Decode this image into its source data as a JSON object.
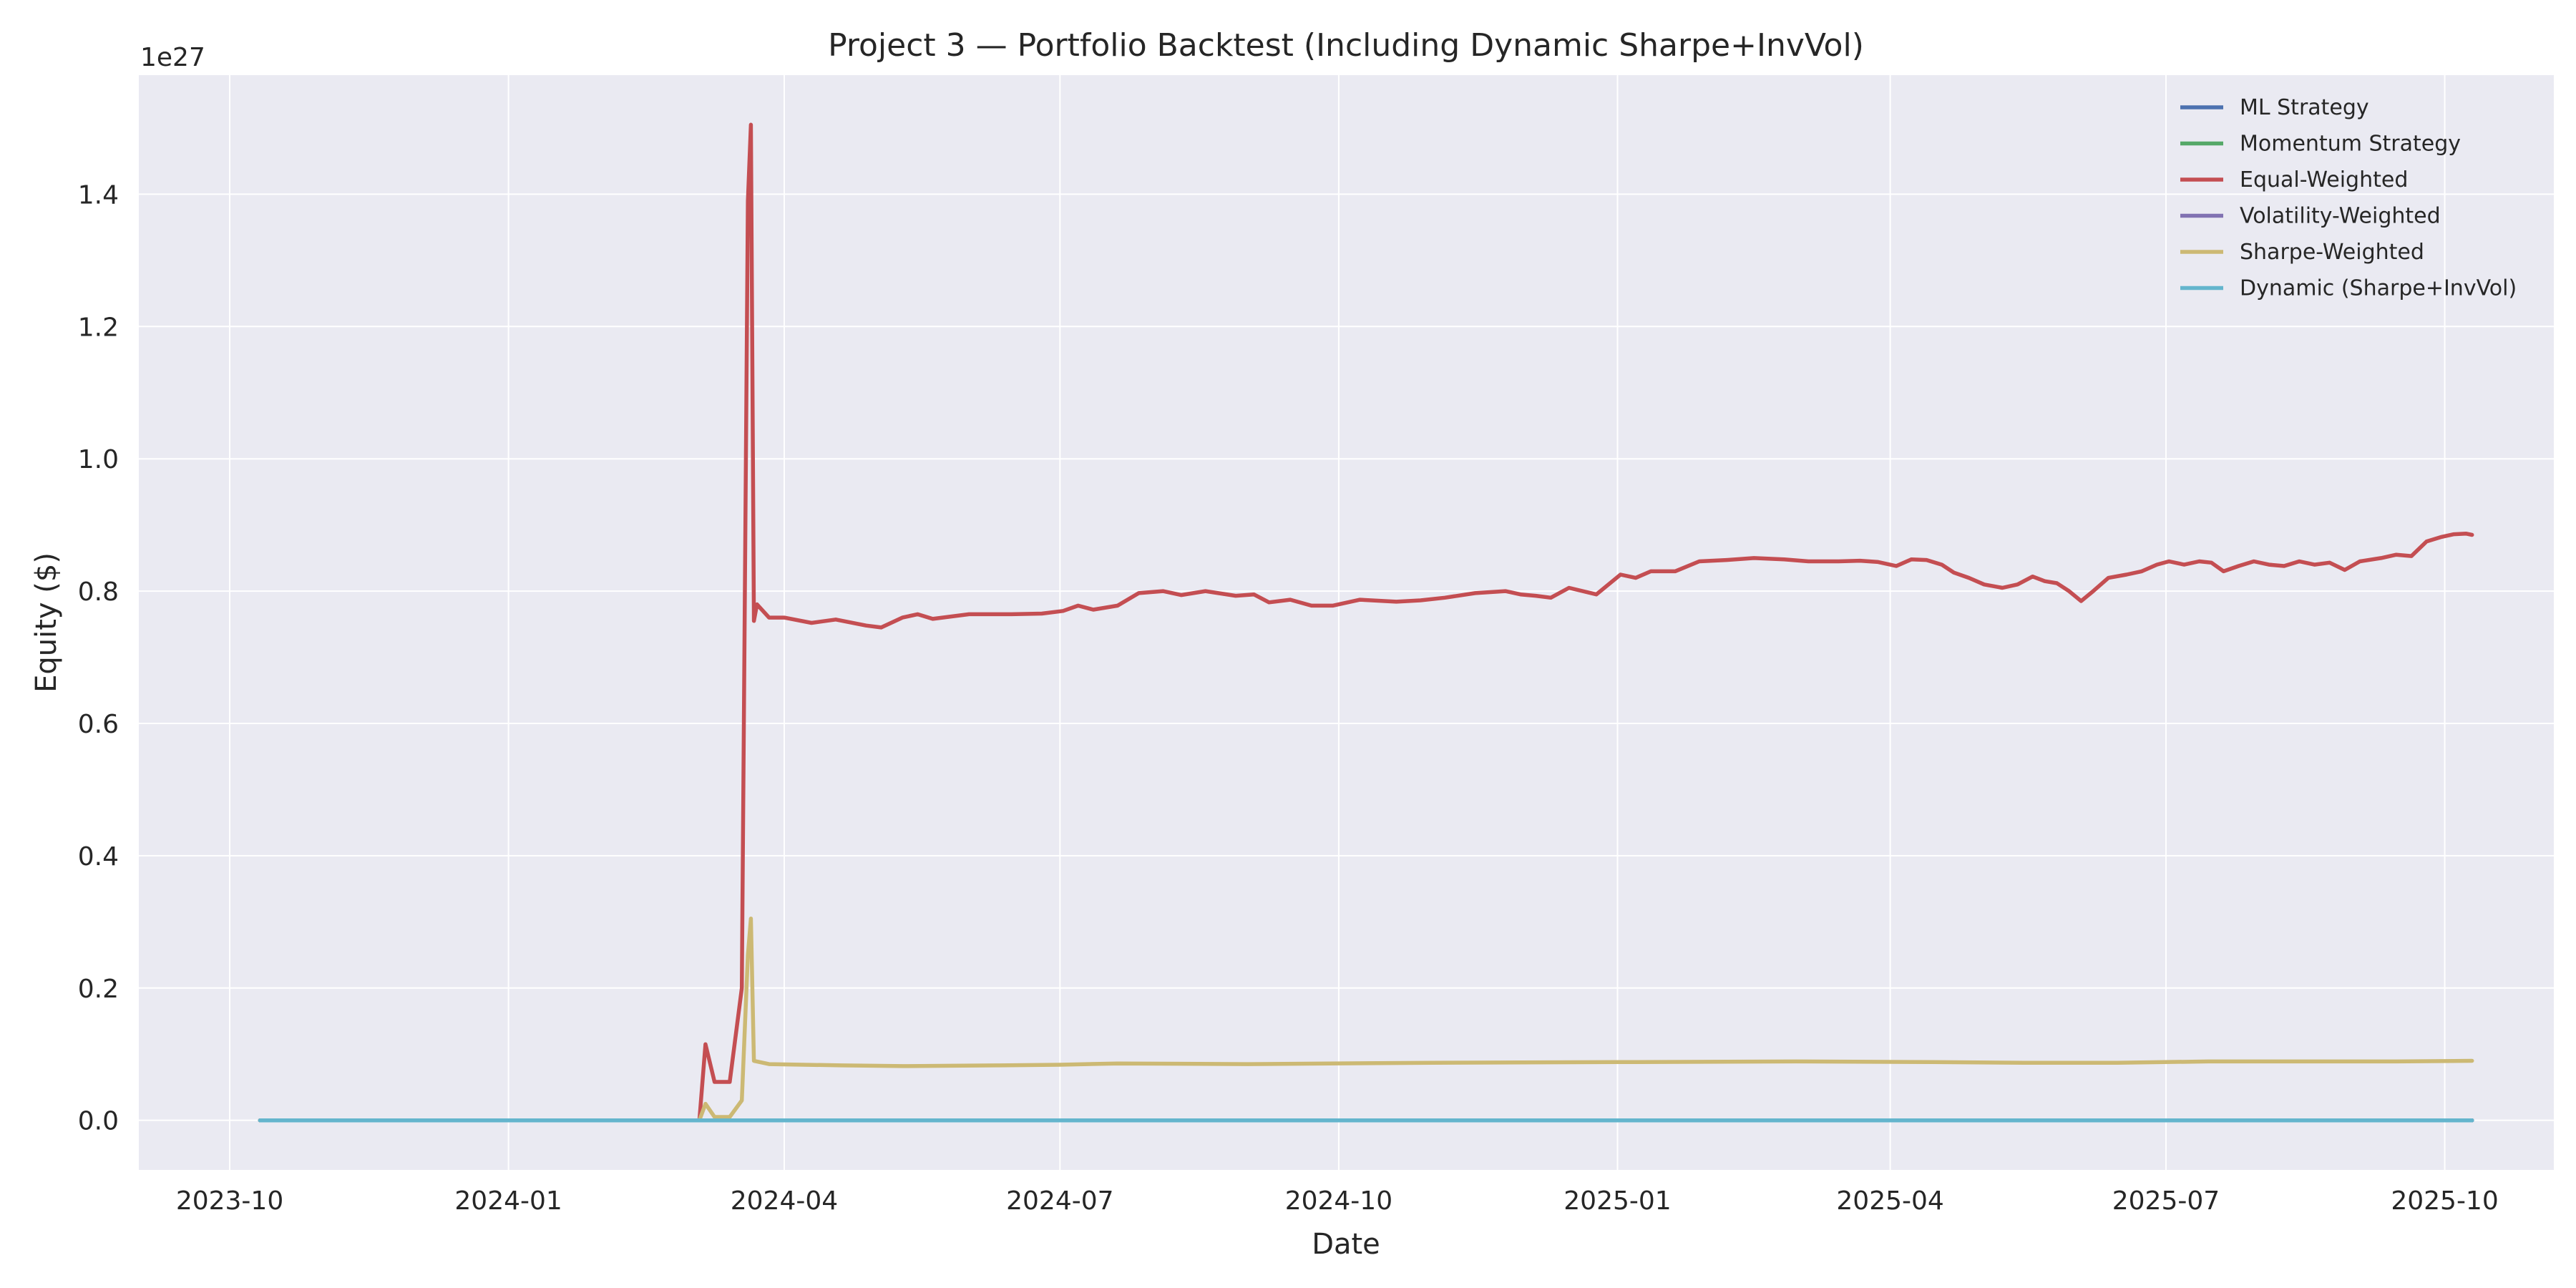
{
  "chart_data": {
    "type": "line",
    "title": "Project 3 — Portfolio Backtest (Including Dynamic Sharpe+InvVol)",
    "xlabel": "Date",
    "ylabel": "Equity ($)",
    "y_offset_label": "1e27",
    "y_unit_multiplier": 1e+27,
    "xlim": [
      "2023-09-01",
      "2025-11-06"
    ],
    "ylim": [
      -0.075,
      1.58
    ],
    "x_ticks": [
      {
        "date": "2023-10-01",
        "label": "2023-10"
      },
      {
        "date": "2024-01-01",
        "label": "2024-01"
      },
      {
        "date": "2024-04-01",
        "label": "2024-04"
      },
      {
        "date": "2024-07-01",
        "label": "2024-07"
      },
      {
        "date": "2024-10-01",
        "label": "2024-10"
      },
      {
        "date": "2025-01-01",
        "label": "2025-01"
      },
      {
        "date": "2025-04-01",
        "label": "2025-04"
      },
      {
        "date": "2025-07-01",
        "label": "2025-07"
      },
      {
        "date": "2025-10-01",
        "label": "2025-10"
      }
    ],
    "y_ticks": [
      {
        "value": 0.0,
        "label": "0.0"
      },
      {
        "value": 0.2,
        "label": "0.2"
      },
      {
        "value": 0.4,
        "label": "0.4"
      },
      {
        "value": 0.6,
        "label": "0.6"
      },
      {
        "value": 0.8,
        "label": "0.8"
      },
      {
        "value": 1.0,
        "label": "1.0"
      },
      {
        "value": 1.2,
        "label": "1.2"
      },
      {
        "value": 1.4,
        "label": "1.4"
      }
    ],
    "grid": true,
    "legend_position": "top-right",
    "series": [
      {
        "name": "ML Strategy",
        "color": "#4c72b0",
        "points": [
          [
            "2023-10-11",
            0.0
          ],
          [
            "2025-10-10",
            0.0
          ]
        ]
      },
      {
        "name": "Momentum Strategy",
        "color": "#55a868",
        "points": [
          [
            "2023-10-11",
            0.0
          ],
          [
            "2025-10-10",
            0.0
          ]
        ]
      },
      {
        "name": "Equal-Weighted",
        "color": "#c44e52",
        "points": [
          [
            "2023-10-11",
            0.0
          ],
          [
            "2024-03-04",
            0.0
          ],
          [
            "2024-03-06",
            0.115
          ],
          [
            "2024-03-09",
            0.058
          ],
          [
            "2024-03-14",
            0.058
          ],
          [
            "2024-03-18",
            0.2
          ],
          [
            "2024-03-20",
            1.39
          ],
          [
            "2024-03-21",
            1.505
          ],
          [
            "2024-03-22",
            0.755
          ],
          [
            "2024-03-23",
            0.78
          ],
          [
            "2024-03-27",
            0.76
          ],
          [
            "2024-04-01",
            0.76
          ],
          [
            "2024-04-10",
            0.752
          ],
          [
            "2024-04-18",
            0.757
          ],
          [
            "2024-04-28",
            0.748
          ],
          [
            "2024-05-03",
            0.745
          ],
          [
            "2024-05-10",
            0.76
          ],
          [
            "2024-05-15",
            0.765
          ],
          [
            "2024-05-20",
            0.758
          ],
          [
            "2024-06-01",
            0.765
          ],
          [
            "2024-06-15",
            0.765
          ],
          [
            "2024-06-25",
            0.766
          ],
          [
            "2024-07-02",
            0.77
          ],
          [
            "2024-07-07",
            0.778
          ],
          [
            "2024-07-12",
            0.772
          ],
          [
            "2024-07-20",
            0.778
          ],
          [
            "2024-07-27",
            0.797
          ],
          [
            "2024-08-04",
            0.8
          ],
          [
            "2024-08-10",
            0.794
          ],
          [
            "2024-08-18",
            0.8
          ],
          [
            "2024-08-28",
            0.793
          ],
          [
            "2024-09-03",
            0.795
          ],
          [
            "2024-09-08",
            0.783
          ],
          [
            "2024-09-15",
            0.787
          ],
          [
            "2024-09-22",
            0.778
          ],
          [
            "2024-09-29",
            0.778
          ],
          [
            "2024-10-08",
            0.787
          ],
          [
            "2024-10-20",
            0.784
          ],
          [
            "2024-10-28",
            0.786
          ],
          [
            "2024-11-05",
            0.79
          ],
          [
            "2024-11-15",
            0.797
          ],
          [
            "2024-11-25",
            0.8
          ],
          [
            "2024-11-30",
            0.795
          ],
          [
            "2024-12-05",
            0.793
          ],
          [
            "2024-12-10",
            0.79
          ],
          [
            "2024-12-16",
            0.805
          ],
          [
            "2024-12-25",
            0.795
          ],
          [
            "2025-01-02",
            0.825
          ],
          [
            "2025-01-07",
            0.82
          ],
          [
            "2025-01-12",
            0.83
          ],
          [
            "2025-01-20",
            0.83
          ],
          [
            "2025-01-28",
            0.845
          ],
          [
            "2025-02-06",
            0.847
          ],
          [
            "2025-02-15",
            0.85
          ],
          [
            "2025-02-25",
            0.848
          ],
          [
            "2025-03-05",
            0.845
          ],
          [
            "2025-03-15",
            0.845
          ],
          [
            "2025-03-22",
            0.846
          ],
          [
            "2025-03-28",
            0.844
          ],
          [
            "2025-04-03",
            0.838
          ],
          [
            "2025-04-08",
            0.848
          ],
          [
            "2025-04-13",
            0.847
          ],
          [
            "2025-04-18",
            0.84
          ],
          [
            "2025-04-22",
            0.828
          ],
          [
            "2025-04-27",
            0.82
          ],
          [
            "2025-05-02",
            0.81
          ],
          [
            "2025-05-08",
            0.805
          ],
          [
            "2025-05-13",
            0.81
          ],
          [
            "2025-05-18",
            0.822
          ],
          [
            "2025-05-22",
            0.815
          ],
          [
            "2025-05-26",
            0.812
          ],
          [
            "2025-05-30",
            0.8
          ],
          [
            "2025-06-03",
            0.785
          ],
          [
            "2025-06-07",
            0.8
          ],
          [
            "2025-06-12",
            0.82
          ],
          [
            "2025-06-18",
            0.825
          ],
          [
            "2025-06-23",
            0.83
          ],
          [
            "2025-06-28",
            0.84
          ],
          [
            "2025-07-02",
            0.845
          ],
          [
            "2025-07-07",
            0.84
          ],
          [
            "2025-07-12",
            0.845
          ],
          [
            "2025-07-16",
            0.843
          ],
          [
            "2025-07-20",
            0.83
          ],
          [
            "2025-07-25",
            0.838
          ],
          [
            "2025-07-30",
            0.845
          ],
          [
            "2025-08-04",
            0.84
          ],
          [
            "2025-08-09",
            0.838
          ],
          [
            "2025-08-14",
            0.845
          ],
          [
            "2025-08-19",
            0.84
          ],
          [
            "2025-08-24",
            0.843
          ],
          [
            "2025-08-29",
            0.832
          ],
          [
            "2025-09-03",
            0.845
          ],
          [
            "2025-09-10",
            0.85
          ],
          [
            "2025-09-15",
            0.855
          ],
          [
            "2025-09-20",
            0.853
          ],
          [
            "2025-09-25",
            0.875
          ],
          [
            "2025-09-30",
            0.882
          ],
          [
            "2025-10-04",
            0.886
          ],
          [
            "2025-10-08",
            0.887
          ],
          [
            "2025-10-10",
            0.885
          ]
        ]
      },
      {
        "name": "Volatility-Weighted",
        "color": "#8172b2",
        "points": [
          [
            "2023-10-11",
            0.0
          ],
          [
            "2025-10-10",
            0.0
          ]
        ]
      },
      {
        "name": "Sharpe-Weighted",
        "color": "#ccb974",
        "points": [
          [
            "2023-10-11",
            0.0
          ],
          [
            "2024-03-04",
            0.0
          ],
          [
            "2024-03-06",
            0.025
          ],
          [
            "2024-03-09",
            0.005
          ],
          [
            "2024-03-14",
            0.005
          ],
          [
            "2024-03-18",
            0.03
          ],
          [
            "2024-03-20",
            0.25
          ],
          [
            "2024-03-21",
            0.305
          ],
          [
            "2024-03-22",
            0.09
          ],
          [
            "2024-03-27",
            0.085
          ],
          [
            "2024-04-20",
            0.083
          ],
          [
            "2024-05-10",
            0.082
          ],
          [
            "2024-06-10",
            0.083
          ],
          [
            "2024-07-01",
            0.084
          ],
          [
            "2024-07-20",
            0.086
          ],
          [
            "2024-09-01",
            0.085
          ],
          [
            "2024-11-01",
            0.087
          ],
          [
            "2025-01-01",
            0.088
          ],
          [
            "2025-03-01",
            0.089
          ],
          [
            "2025-04-15",
            0.088
          ],
          [
            "2025-05-15",
            0.087
          ],
          [
            "2025-06-15",
            0.087
          ],
          [
            "2025-07-15",
            0.089
          ],
          [
            "2025-08-15",
            0.089
          ],
          [
            "2025-09-15",
            0.089
          ],
          [
            "2025-10-10",
            0.09
          ]
        ]
      },
      {
        "name": "Dynamic (Sharpe+InvVol)",
        "color": "#64b5cd",
        "points": [
          [
            "2023-10-11",
            0.0
          ],
          [
            "2025-10-10",
            0.0
          ]
        ]
      }
    ]
  }
}
